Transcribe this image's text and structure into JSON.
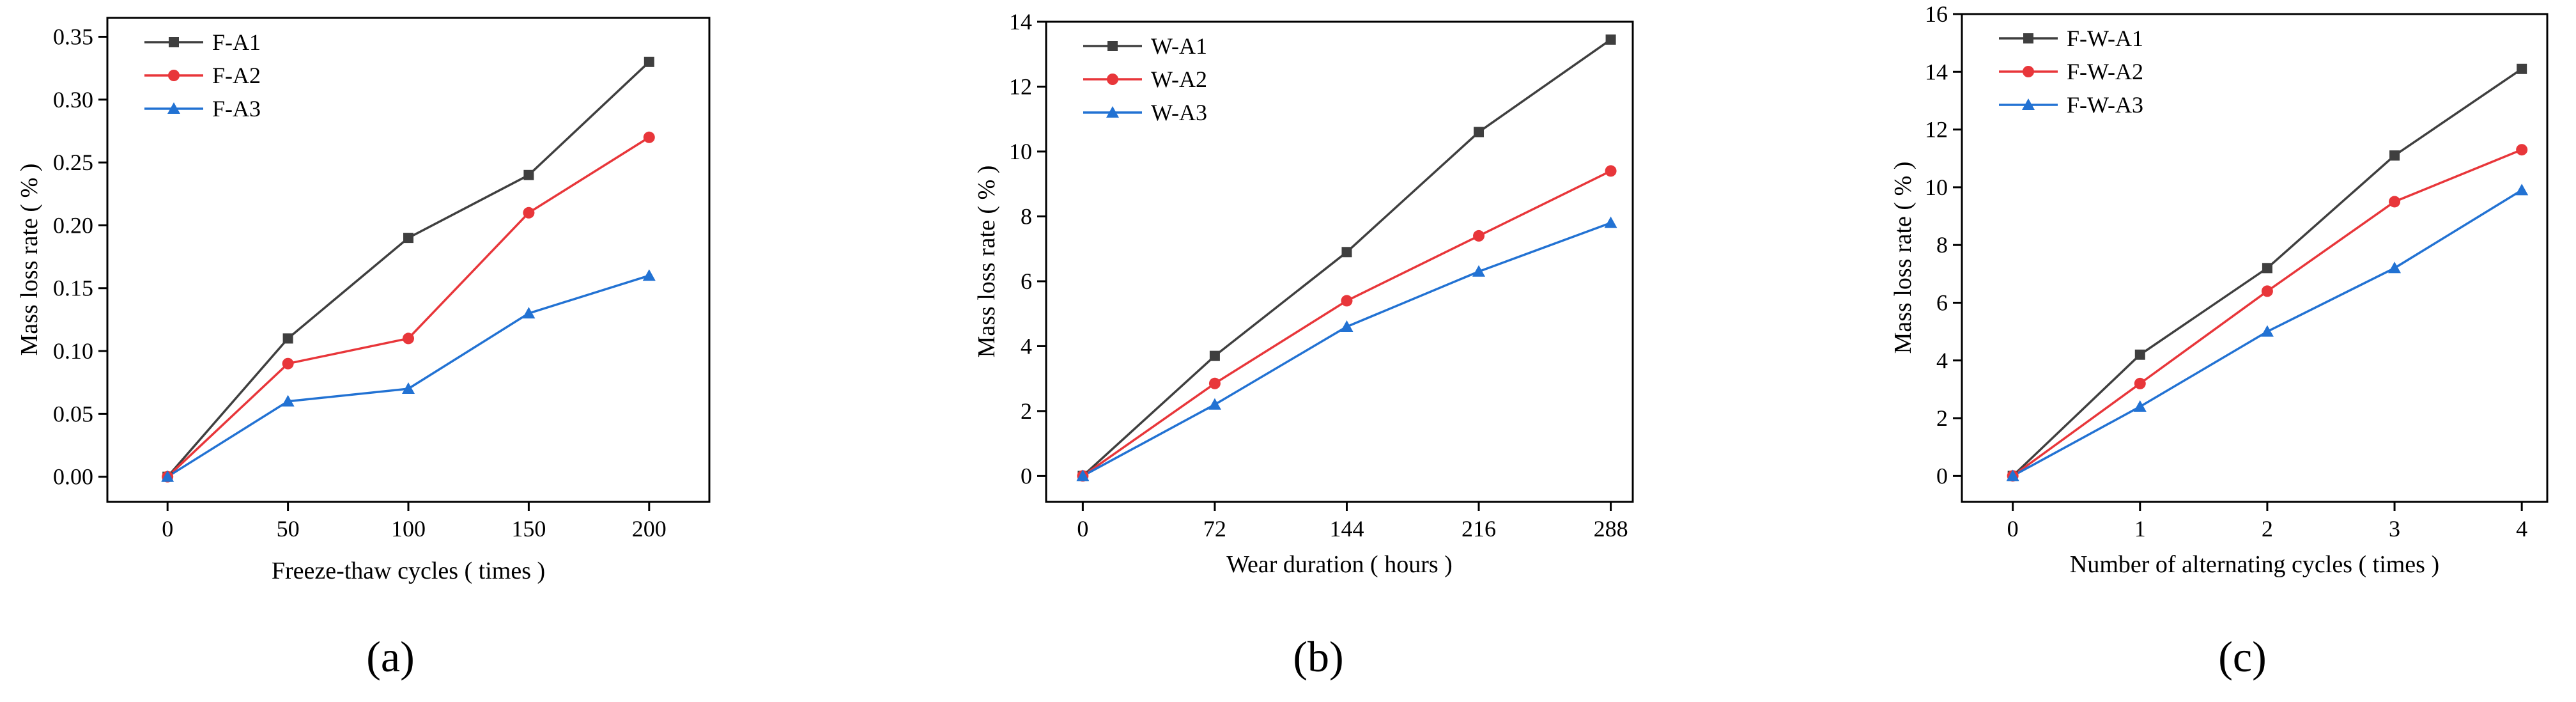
{
  "chart_data": [
    {
      "type": "line",
      "panel_label": "(a)",
      "xlabel": "Freeze-thaw cycles ( times )",
      "ylabel": "Mass loss rate ( % )",
      "xlim": [
        -25,
        225
      ],
      "ylim": [
        -0.02,
        0.365
      ],
      "xticks": [
        0,
        50,
        100,
        150,
        200
      ],
      "xtick_labels": [
        "0",
        "50",
        "100",
        "150",
        "200"
      ],
      "yticks": [
        0,
        0.05,
        0.1,
        0.15,
        0.2,
        0.25,
        0.3,
        0.35
      ],
      "ytick_labels": [
        "0.00",
        "0.05",
        "0.10",
        "0.15",
        "0.20",
        "0.25",
        "0.30",
        "0.35"
      ],
      "legend_position": "top-left",
      "x": [
        0,
        50,
        100,
        150,
        200
      ],
      "series": [
        {
          "name": "F-A1",
          "color": "#3f3f3f",
          "marker": "square",
          "values": [
            0,
            0.11,
            0.19,
            0.24,
            0.33
          ]
        },
        {
          "name": "F-A2",
          "color": "#e8363a",
          "marker": "circle",
          "values": [
            0,
            0.09,
            0.11,
            0.21,
            0.27
          ]
        },
        {
          "name": "F-A3",
          "color": "#2272d3",
          "marker": "triangle",
          "values": [
            0,
            0.06,
            0.07,
            0.13,
            0.16
          ]
        }
      ]
    },
    {
      "type": "line",
      "panel_label": "(b)",
      "xlabel": "Wear duration ( hours )",
      "ylabel": "Mass loss rate ( % )",
      "xlim": [
        -20,
        300
      ],
      "ylim": [
        -0.8,
        14
      ],
      "xticks": [
        0,
        72,
        144,
        216,
        288
      ],
      "xtick_labels": [
        "0",
        "72",
        "144",
        "216",
        "288"
      ],
      "yticks": [
        0,
        2,
        4,
        6,
        8,
        10,
        12,
        14
      ],
      "ytick_labels": [
        "0",
        "2",
        "4",
        "6",
        "8",
        "10",
        "12",
        "14"
      ],
      "legend_position": "top-left",
      "x": [
        0,
        72,
        144,
        216,
        288
      ],
      "series": [
        {
          "name": "W-A1",
          "color": "#3f3f3f",
          "marker": "square",
          "values": [
            0,
            3.7,
            6.9,
            10.6,
            13.45
          ]
        },
        {
          "name": "W-A2",
          "color": "#e8363a",
          "marker": "circle",
          "values": [
            0,
            2.85,
            5.4,
            7.4,
            9.4
          ]
        },
        {
          "name": "W-A3",
          "color": "#2272d3",
          "marker": "triangle",
          "values": [
            0,
            2.2,
            4.6,
            6.3,
            7.8
          ]
        }
      ]
    },
    {
      "type": "line",
      "panel_label": "(c)",
      "xlabel": "Number of alternating cycles  ( times )",
      "ylabel": "Mass loss rate ( % )",
      "xlim": [
        -0.4,
        4.2
      ],
      "ylim": [
        -0.9,
        16
      ],
      "xticks": [
        0,
        1,
        2,
        3,
        4
      ],
      "xtick_labels": [
        "0",
        "1",
        "2",
        "3",
        "4"
      ],
      "yticks": [
        0,
        2,
        4,
        6,
        8,
        10,
        12,
        14,
        16
      ],
      "ytick_labels": [
        "0",
        "2",
        "4",
        "6",
        "8",
        "10",
        "12",
        "14",
        "16"
      ],
      "legend_position": "top-left",
      "x": [
        0,
        1,
        2,
        3,
        4
      ],
      "series": [
        {
          "name": "F-W-A1",
          "color": "#3f3f3f",
          "marker": "square",
          "values": [
            0,
            4.2,
            7.2,
            11.1,
            14.1
          ]
        },
        {
          "name": "F-W-A2",
          "color": "#e8363a",
          "marker": "circle",
          "values": [
            0,
            3.2,
            6.4,
            9.5,
            11.3
          ]
        },
        {
          "name": "F-W-A3",
          "color": "#2272d3",
          "marker": "triangle",
          "values": [
            0,
            2.4,
            5.0,
            7.2,
            9.9
          ]
        }
      ]
    }
  ]
}
